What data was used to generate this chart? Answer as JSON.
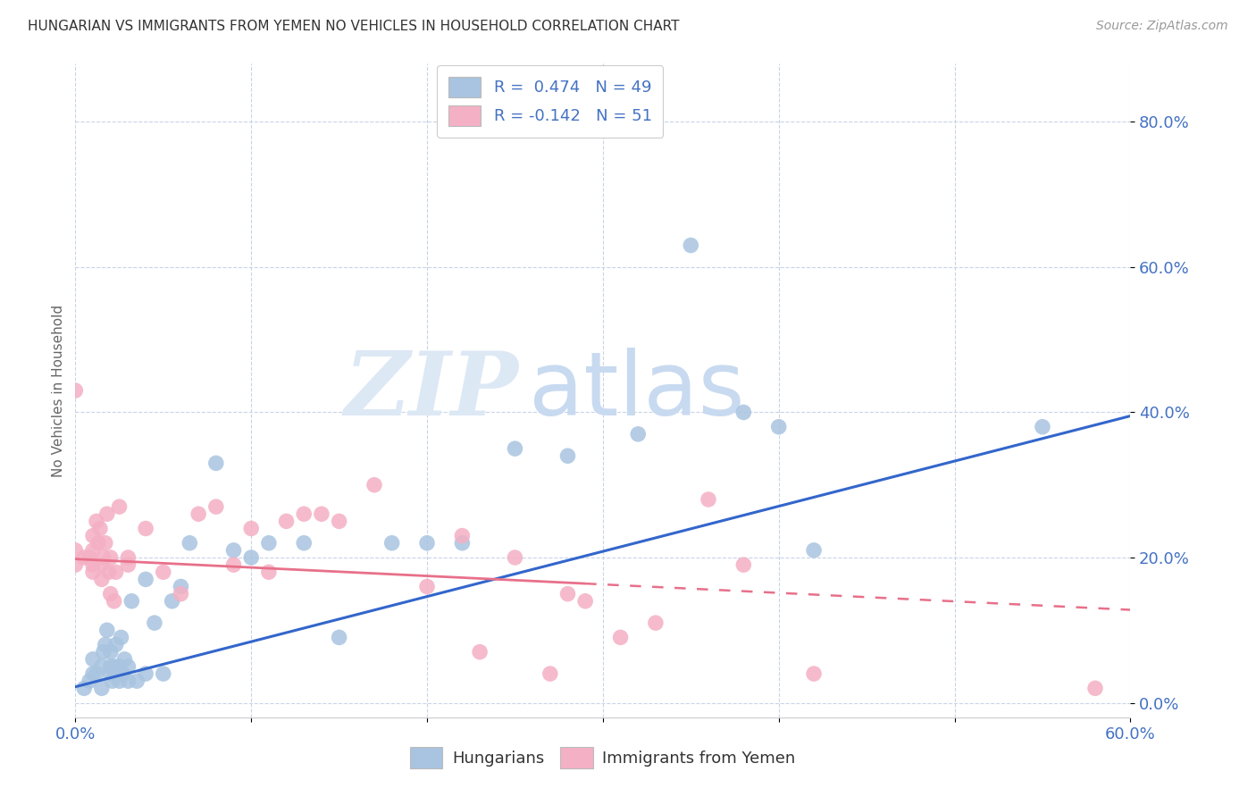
{
  "title": "HUNGARIAN VS IMMIGRANTS FROM YEMEN NO VEHICLES IN HOUSEHOLD CORRELATION CHART",
  "source": "Source: ZipAtlas.com",
  "ylabel": "No Vehicles in Household",
  "yticks": [
    "0.0%",
    "20.0%",
    "40.0%",
    "60.0%",
    "80.0%"
  ],
  "ytick_vals": [
    0.0,
    0.2,
    0.4,
    0.6,
    0.8
  ],
  "xlim": [
    0.0,
    0.6
  ],
  "ylim": [
    -0.02,
    0.88
  ],
  "blue_color": "#a8c4e0",
  "pink_color": "#f4b0c4",
  "blue_line_color": "#3366cc",
  "pink_line_color": "#e8708a",
  "watermark_zip": "ZIP",
  "watermark_atlas": "atlas",
  "hungarian_x": [
    0.005,
    0.008,
    0.01,
    0.01,
    0.012,
    0.015,
    0.015,
    0.016,
    0.017,
    0.018,
    0.02,
    0.02,
    0.02,
    0.021,
    0.022,
    0.023,
    0.025,
    0.025,
    0.026,
    0.027,
    0.028,
    0.03,
    0.03,
    0.032,
    0.035,
    0.04,
    0.04,
    0.045,
    0.05,
    0.055,
    0.06,
    0.065,
    0.08,
    0.09,
    0.1,
    0.11,
    0.13,
    0.15,
    0.18,
    0.2,
    0.22,
    0.25,
    0.28,
    0.32,
    0.35,
    0.38,
    0.4,
    0.42,
    0.55
  ],
  "hungarian_y": [
    0.02,
    0.03,
    0.04,
    0.06,
    0.04,
    0.02,
    0.05,
    0.07,
    0.08,
    0.1,
    0.04,
    0.05,
    0.07,
    0.03,
    0.05,
    0.08,
    0.03,
    0.05,
    0.09,
    0.04,
    0.06,
    0.03,
    0.05,
    0.14,
    0.03,
    0.04,
    0.17,
    0.11,
    0.04,
    0.14,
    0.16,
    0.22,
    0.33,
    0.21,
    0.2,
    0.22,
    0.22,
    0.09,
    0.22,
    0.22,
    0.22,
    0.35,
    0.34,
    0.37,
    0.63,
    0.4,
    0.38,
    0.21,
    0.38
  ],
  "yemen_x": [
    0.0,
    0.0,
    0.0,
    0.005,
    0.008,
    0.01,
    0.01,
    0.01,
    0.01,
    0.012,
    0.013,
    0.014,
    0.015,
    0.015,
    0.016,
    0.017,
    0.018,
    0.019,
    0.02,
    0.02,
    0.022,
    0.023,
    0.025,
    0.03,
    0.03,
    0.04,
    0.05,
    0.06,
    0.07,
    0.08,
    0.09,
    0.1,
    0.11,
    0.12,
    0.13,
    0.14,
    0.15,
    0.17,
    0.2,
    0.22,
    0.23,
    0.25,
    0.27,
    0.28,
    0.29,
    0.31,
    0.33,
    0.36,
    0.38,
    0.42,
    0.58
  ],
  "yemen_y": [
    0.19,
    0.21,
    0.43,
    0.2,
    0.2,
    0.18,
    0.19,
    0.21,
    0.23,
    0.25,
    0.22,
    0.24,
    0.17,
    0.19,
    0.2,
    0.22,
    0.26,
    0.18,
    0.15,
    0.2,
    0.14,
    0.18,
    0.27,
    0.19,
    0.2,
    0.24,
    0.18,
    0.15,
    0.26,
    0.27,
    0.19,
    0.24,
    0.18,
    0.25,
    0.26,
    0.26,
    0.25,
    0.3,
    0.16,
    0.23,
    0.07,
    0.2,
    0.04,
    0.15,
    0.14,
    0.09,
    0.11,
    0.28,
    0.19,
    0.04,
    0.02
  ],
  "blue_line_x0": 0.0,
  "blue_line_y0": 0.022,
  "blue_line_x1": 0.6,
  "blue_line_y1": 0.395,
  "pink_line_x0": 0.0,
  "pink_line_y0": 0.198,
  "pink_line_x1": 0.6,
  "pink_line_y1": 0.128
}
